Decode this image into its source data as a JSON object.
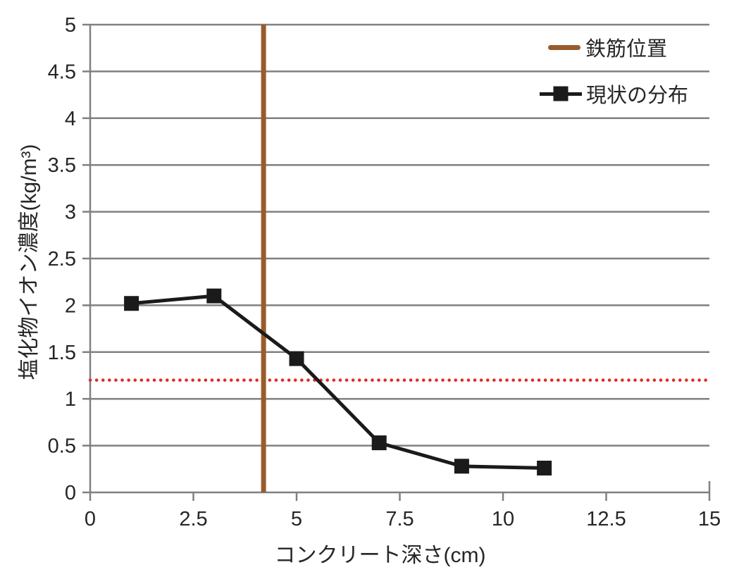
{
  "figure": {
    "background": "#FFFFFF"
  },
  "legend": {
    "position": "top-right-inside",
    "items": [
      {
        "label": "鉄筋位置",
        "sample": "solid-line",
        "color": "#9A5B2B"
      },
      {
        "label": "現状の分布",
        "sample": "line-with-square-marker",
        "color": "#1A1A1A"
      }
    ]
  },
  "axes": {
    "axis_color": "#808080",
    "grid_color": "#808080",
    "tick_label_color": "#262626",
    "axis_line_width": 2.5
  },
  "chart_data": {
    "type": "line",
    "title": "",
    "xlabel": "コンクリート深さ(cm)",
    "ylabel": "塩化物イオン濃度(kg/m³)",
    "xlim": [
      0,
      15
    ],
    "ylim": [
      0,
      5
    ],
    "x_ticks": [
      0,
      2.5,
      5,
      7.5,
      10,
      12.5,
      15
    ],
    "y_ticks": [
      0,
      0.5,
      1,
      1.5,
      2,
      2.5,
      3,
      3.5,
      4,
      4.5,
      5
    ],
    "grid": "horizontal-only",
    "legend_position": "top-right-inside",
    "series": [
      {
        "name": "現状の分布",
        "color": "#1A1A1A",
        "marker": "square",
        "marker_size": 21,
        "line_width": 5,
        "x": [
          1,
          3,
          5,
          7,
          9,
          11
        ],
        "y": [
          2.02,
          2.1,
          1.43,
          0.53,
          0.28,
          0.26
        ]
      }
    ],
    "reference_lines": [
      {
        "id": "rebar-position",
        "label": "鉄筋位置",
        "orientation": "vertical",
        "x": 4.2,
        "color": "#9A5B2B",
        "style": "solid",
        "line_width": 7
      },
      {
        "id": "threshold",
        "orientation": "horizontal",
        "y": 1.2,
        "color": "#E32828",
        "style": "dotted",
        "line_width": 4.5
      }
    ]
  }
}
